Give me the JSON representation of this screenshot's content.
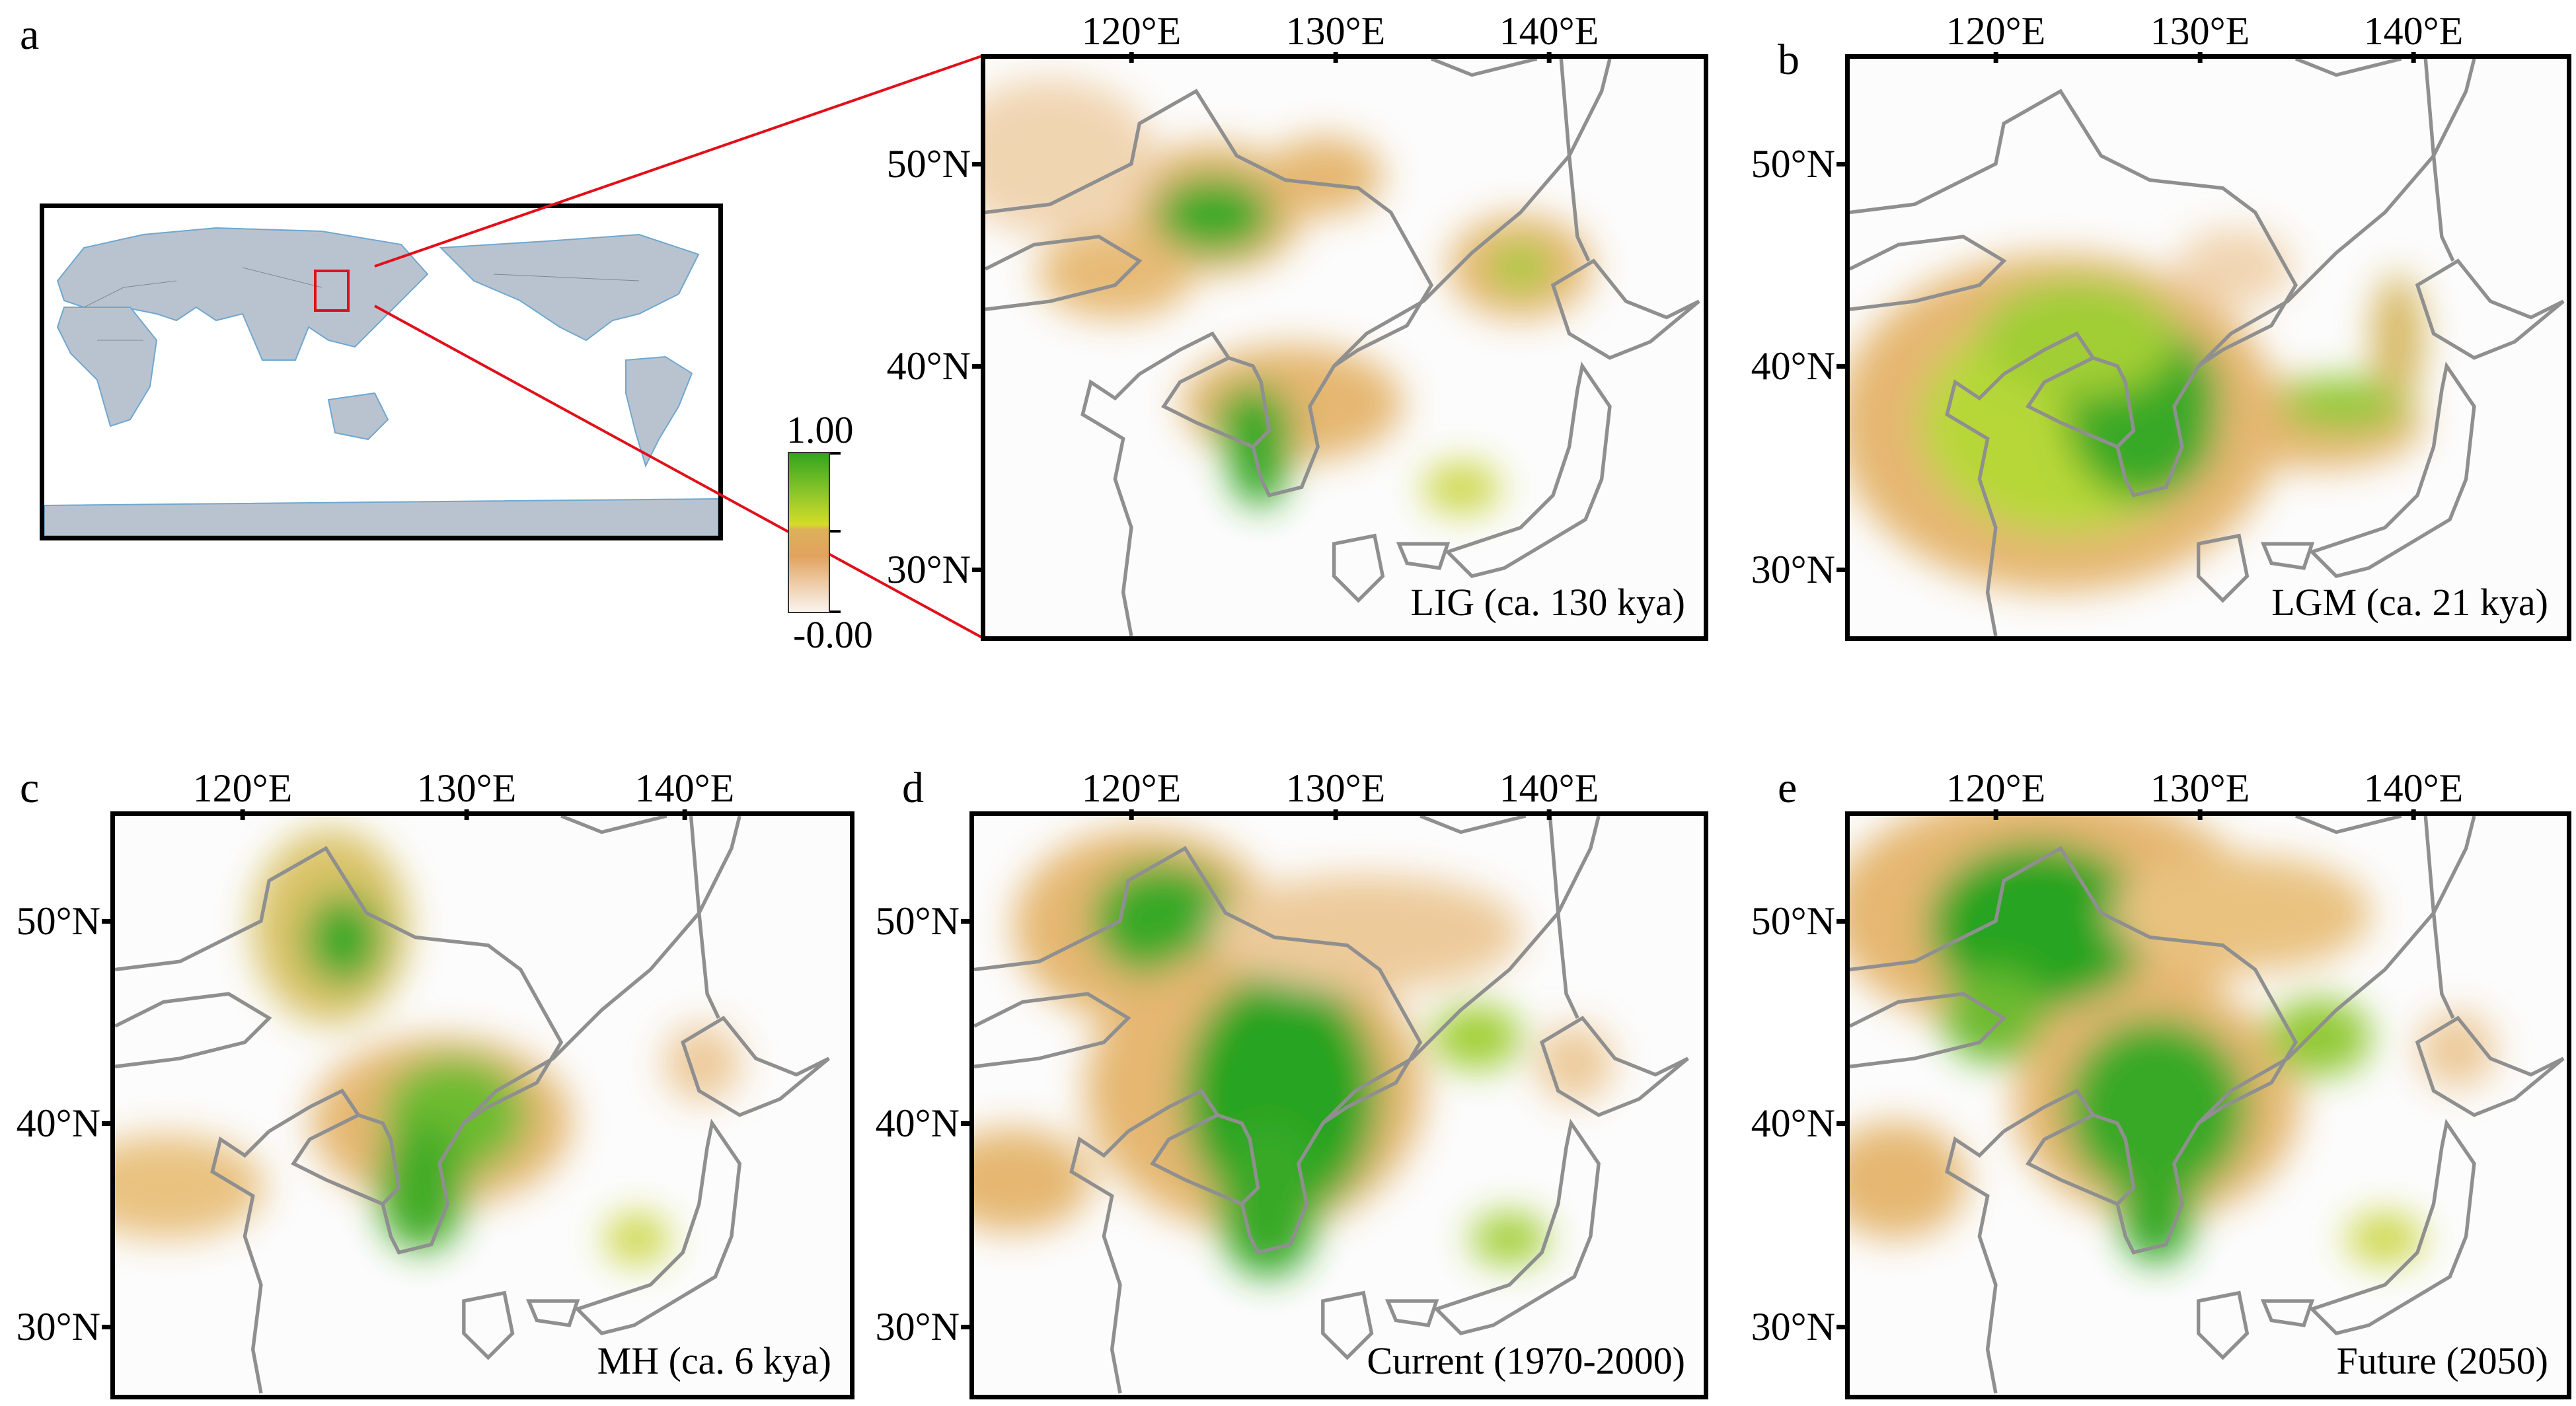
{
  "figure": {
    "panels": {
      "a": {
        "letter": "a",
        "title": "LIG (ca. 130 kya)"
      },
      "b": {
        "letter": "b",
        "title": "LGM (ca. 21 kya)"
      },
      "c": {
        "letter": "c",
        "title": "MH (ca. 6 kya)"
      },
      "d": {
        "letter": "d",
        "title": "Current (1970-2000)"
      },
      "e": {
        "letter": "e",
        "title": "Future (2050)"
      }
    },
    "longitude_ticks": [
      "120°E",
      "130°E",
      "140°E"
    ],
    "latitude_ticks": [
      "50°N",
      "40°N",
      "30°N"
    ],
    "colorbar": {
      "max_label": "1.00",
      "min_label": "-0.00",
      "colors": [
        "#faf4ee",
        "#e2a25e",
        "#d6dc28",
        "#32a51e"
      ]
    },
    "inset_highlight_color": "#e0101a"
  }
}
